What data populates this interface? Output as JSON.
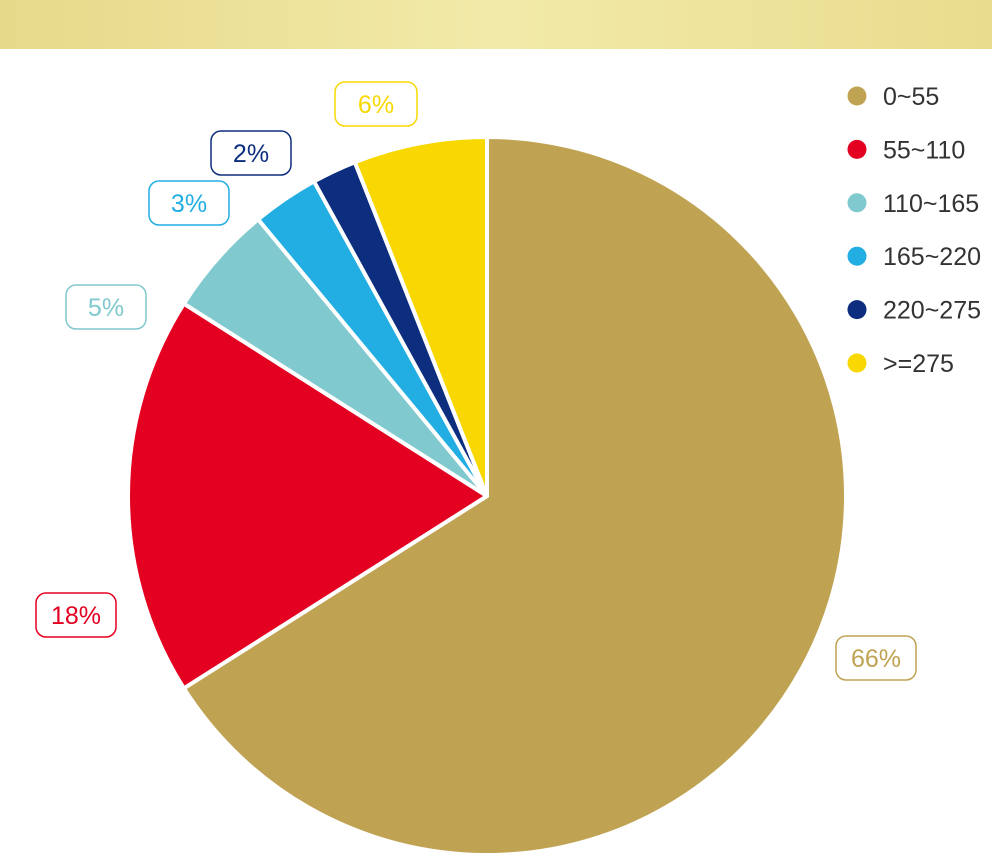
{
  "chart_data": {
    "type": "pie",
    "categories": [
      "0~55",
      "55~110",
      "110~165",
      "165~220",
      "220~275",
      ">=275"
    ],
    "values": [
      66,
      18,
      5,
      3,
      2,
      6
    ],
    "value_labels": [
      "66%",
      "18%",
      "5%",
      "3%",
      "2%",
      "6%"
    ],
    "colors": [
      "#bfa252",
      "#e30021",
      "#80c9cf",
      "#22aee3",
      "#0d2e7f",
      "#f8d800"
    ],
    "start_angle": "12 o'clock",
    "direction": "clockwise",
    "legend_position": "top-right"
  }
}
